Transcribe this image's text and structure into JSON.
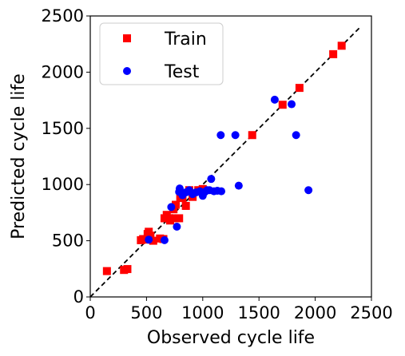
{
  "chart_data": {
    "type": "scatter",
    "xlabel": "Observed cycle life",
    "ylabel": "Predicted cycle life",
    "xlim": [
      0,
      2500
    ],
    "ylim": [
      0,
      2500
    ],
    "xticks": [
      "0",
      "500",
      "1000",
      "1500",
      "2000",
      "2500"
    ],
    "yticks": [
      "0",
      "500",
      "1000",
      "1500",
      "2000",
      "2500"
    ],
    "grid": false,
    "legend_position": "top-left",
    "reference_line": {
      "style": "dashed",
      "color": "#000000",
      "from": [
        0,
        0
      ],
      "to": [
        2400,
        2400
      ]
    },
    "series": [
      {
        "name": "Train",
        "marker": "square",
        "color": "#ff0000",
        "points": [
          [
            148,
            230
          ],
          [
            300,
            240
          ],
          [
            330,
            248
          ],
          [
            450,
            505
          ],
          [
            470,
            515
          ],
          [
            490,
            510
          ],
          [
            510,
            560
          ],
          [
            520,
            580
          ],
          [
            535,
            545
          ],
          [
            560,
            500
          ],
          [
            620,
            520
          ],
          [
            650,
            515
          ],
          [
            660,
            700
          ],
          [
            680,
            730
          ],
          [
            700,
            700
          ],
          [
            710,
            680
          ],
          [
            730,
            700
          ],
          [
            740,
            780
          ],
          [
            760,
            820
          ],
          [
            790,
            700
          ],
          [
            800,
            890
          ],
          [
            820,
            880
          ],
          [
            850,
            810
          ],
          [
            880,
            950
          ],
          [
            910,
            890
          ],
          [
            960,
            950
          ],
          [
            1000,
            960
          ],
          [
            1440,
            1440
          ],
          [
            1710,
            1710
          ],
          [
            1860,
            1860
          ],
          [
            2160,
            2160
          ],
          [
            2235,
            2235
          ]
        ]
      },
      {
        "name": "Test",
        "marker": "circle",
        "color": "#0000ff",
        "points": [
          [
            520,
            510
          ],
          [
            660,
            505
          ],
          [
            720,
            800
          ],
          [
            770,
            625
          ],
          [
            790,
            935
          ],
          [
            795,
            965
          ],
          [
            820,
            905
          ],
          [
            850,
            930
          ],
          [
            880,
            950
          ],
          [
            910,
            915
          ],
          [
            940,
            930
          ],
          [
            975,
            940
          ],
          [
            1000,
            900
          ],
          [
            1020,
            935
          ],
          [
            1040,
            950
          ],
          [
            1060,
            950
          ],
          [
            1075,
            1050
          ],
          [
            1100,
            940
          ],
          [
            1130,
            945
          ],
          [
            1160,
            1440
          ],
          [
            1165,
            940
          ],
          [
            1290,
            1440
          ],
          [
            1320,
            990
          ],
          [
            1640,
            1755
          ],
          [
            1790,
            1715
          ],
          [
            1830,
            1440
          ],
          [
            1940,
            950
          ]
        ]
      }
    ]
  }
}
